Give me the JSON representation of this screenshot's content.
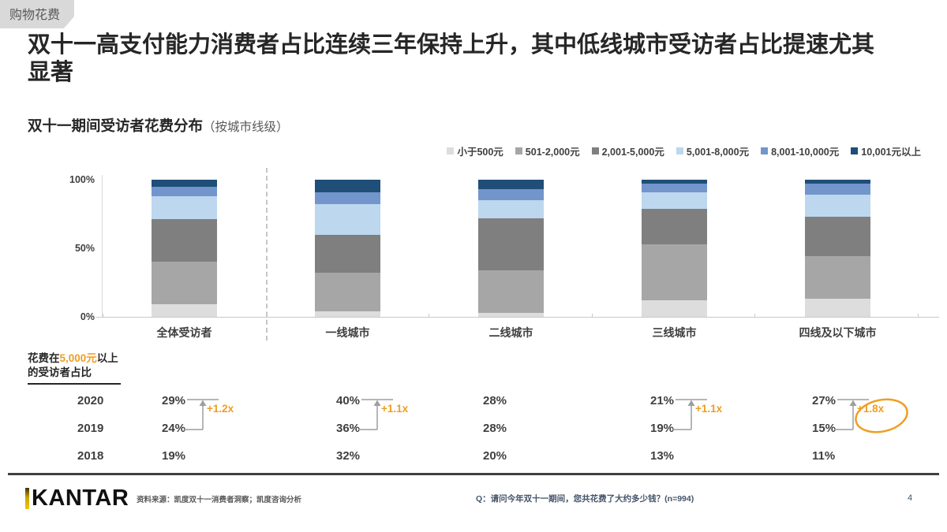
{
  "tag": "购物花费",
  "title": "双十一高支付能力消费者占比连续三年保持上升，其中低线城市受访者占比提速尤其显著",
  "chart_title": "双十一期间受访者花费分布",
  "chart_subtitle": "（按城市线级）",
  "chart_data": {
    "type": "bar",
    "stacked": true,
    "unit": "%",
    "title": "双十一期间受访者花费分布（按城市线级）",
    "categories": [
      "全体受访者",
      "一线城市",
      "二线城市",
      "三线城市",
      "四线及以下城市"
    ],
    "series": [
      {
        "name": "小于500元",
        "color": "#dddddd",
        "values": [
          9,
          4,
          3,
          12,
          13
        ]
      },
      {
        "name": "501-2,000元",
        "color": "#a6a6a6",
        "values": [
          31,
          28,
          31,
          41,
          31
        ]
      },
      {
        "name": "2,001-5,000元",
        "color": "#7f7f7f",
        "values": [
          31,
          28,
          38,
          26,
          29
        ]
      },
      {
        "name": "5,001-8,000元",
        "color": "#bdd7ee",
        "values": [
          17,
          22,
          13,
          12,
          16
        ]
      },
      {
        "name": "8,001-10,000元",
        "color": "#7295cc",
        "values": [
          7,
          9,
          8,
          6,
          8
        ]
      },
      {
        "name": "10,001元以上",
        "color": "#1f4e79",
        "values": [
          5,
          9,
          7,
          3,
          3
        ]
      }
    ],
    "y_ticks": [
      "100%",
      "50%",
      "0%"
    ],
    "ylim": [
      0,
      100
    ],
    "grid": false,
    "legend_position": "top-right"
  },
  "stats": {
    "caption_prefix": "花费在",
    "caption_highlight": "5,000元",
    "caption_suffix": "以上的受访者占比",
    "years": [
      "2020",
      "2019",
      "2018"
    ],
    "columns": [
      {
        "category": "全体受访者",
        "values": [
          "29%",
          "24%",
          "19%"
        ],
        "growth": "+1.2x",
        "circled": false
      },
      {
        "category": "一线城市",
        "values": [
          "40%",
          "36%",
          "32%"
        ],
        "growth": "+1.1x",
        "circled": false
      },
      {
        "category": "二线城市",
        "values": [
          "28%",
          "28%",
          "20%"
        ],
        "growth": null,
        "circled": false
      },
      {
        "category": "三线城市",
        "values": [
          "21%",
          "19%",
          "13%"
        ],
        "growth": "+1.1x",
        "circled": false
      },
      {
        "category": "四线及以下城市",
        "values": [
          "27%",
          "15%",
          "11%"
        ],
        "growth": "+1.8x",
        "circled": true
      }
    ]
  },
  "footer": {
    "logo": "KANTAR",
    "source": "资料来源：凯度双十一消费者洞察；凯度咨询分析",
    "question": "Q：请问今年双十一期间，您共花费了大约多少钱？(n=994)",
    "page": "4"
  },
  "colors": {
    "accent_orange": "#EE9E23",
    "arrow_gray": "#9e9e9e",
    "navy": "#1f4e79"
  }
}
